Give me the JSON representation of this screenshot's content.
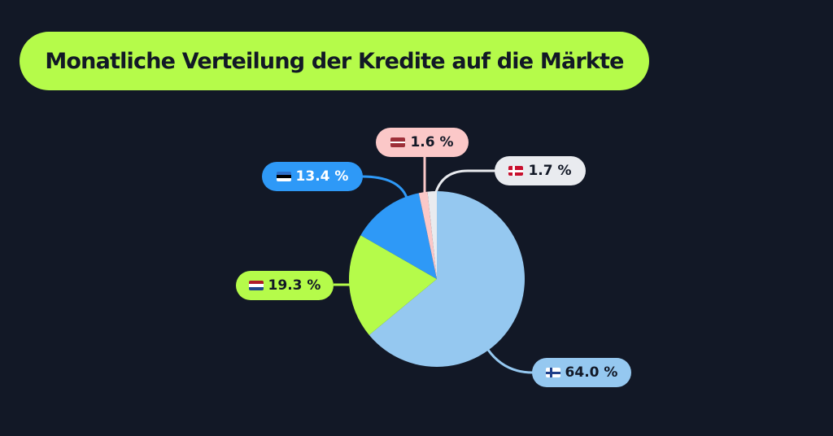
{
  "title": "Monatliche Verteilung der Kredite auf die Märkte",
  "colors": {
    "background": "#121826",
    "title_pill": "#b5fb4a",
    "finland": "#95c8f0",
    "netherlands": "#b5fb4a",
    "estonia": "#2e99f7",
    "latvia": "#fbc8c8",
    "denmark": "#e9ebef"
  },
  "labels": {
    "finland": "64.0 %",
    "netherlands": "19.3 %",
    "estonia": "13.4 %",
    "latvia": "1.6 %",
    "denmark": "1.7 %"
  },
  "chart_data": {
    "type": "pie",
    "title": "Monatliche Verteilung der Kredite auf die Märkte",
    "categories": [
      "Finland",
      "Netherlands",
      "Estonia",
      "Latvia",
      "Denmark"
    ],
    "values": [
      64.0,
      19.3,
      13.4,
      1.6,
      1.7
    ],
    "unit": "%",
    "start_angle": "12 o'clock, clockwise",
    "legend": "none (flag labels with leader lines)"
  }
}
